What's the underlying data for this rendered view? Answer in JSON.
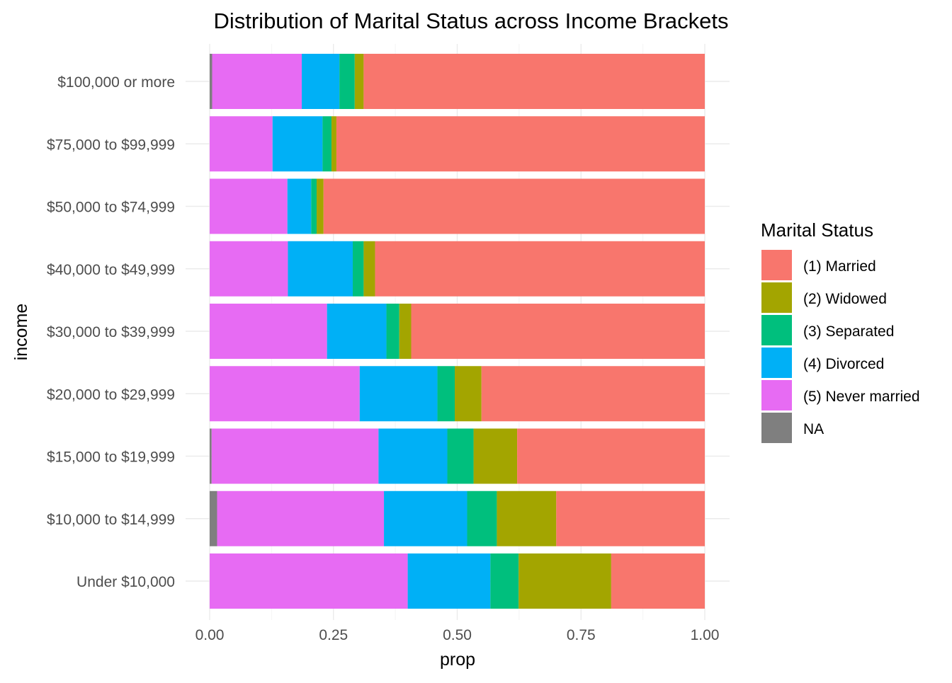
{
  "chart_data": {
    "type": "bar",
    "orientation": "horizontal",
    "stacked": true,
    "title": "Distribution of Marital Status across Income Brackets",
    "xlabel": "prop",
    "ylabel": "income",
    "xlim": [
      0,
      1
    ],
    "x_ticks": [
      "0.00",
      "0.25",
      "0.50",
      "0.75",
      "1.00"
    ],
    "x_tick_values": [
      0,
      0.25,
      0.5,
      0.75,
      1.0
    ],
    "grid": true,
    "legend": {
      "title": "Marital Status",
      "placement": "right",
      "entries": [
        "(1) Married",
        "(2) Widowed",
        "(3) Separated",
        "(4) Divorced",
        "(5) Never married",
        "NA"
      ]
    },
    "categories": [
      "$100,000 or more",
      "$75,000 to $99,999",
      "$50,000 to $74,999",
      "$40,000 to $49,999",
      "$30,000 to $39,999",
      "$20,000 to $29,999",
      "$15,000 to $19,999",
      "$10,000 to $14,999",
      "Under $10,000"
    ],
    "stack_order_from_left": [
      "NA",
      "(5) Never married",
      "(4) Divorced",
      "(3) Separated",
      "(2) Widowed",
      "(1) Married"
    ],
    "series": [
      {
        "name": "NA",
        "color": "#7F7F7F",
        "values": [
          0.005,
          0.0,
          0.0,
          0.0,
          0.0,
          0.0,
          0.004,
          0.015,
          0.0
        ]
      },
      {
        "name": "(5) Never married",
        "color": "#E76BF3",
        "values": [
          0.181,
          0.127,
          0.157,
          0.158,
          0.237,
          0.303,
          0.337,
          0.337,
          0.4
        ]
      },
      {
        "name": "(4) Divorced",
        "color": "#00B0F6",
        "values": [
          0.076,
          0.101,
          0.048,
          0.131,
          0.12,
          0.157,
          0.139,
          0.168,
          0.167
        ]
      },
      {
        "name": "(3) Separated",
        "color": "#00BF7D",
        "values": [
          0.031,
          0.018,
          0.011,
          0.022,
          0.026,
          0.035,
          0.053,
          0.06,
          0.057
        ]
      },
      {
        "name": "(2) Widowed",
        "color": "#A3A500",
        "values": [
          0.018,
          0.01,
          0.014,
          0.023,
          0.024,
          0.054,
          0.088,
          0.12,
          0.187
        ]
      },
      {
        "name": "(1) Married",
        "color": "#F8766D",
        "values": [
          0.689,
          0.744,
          0.77,
          0.666,
          0.593,
          0.451,
          0.379,
          0.3,
          0.189
        ]
      }
    ]
  }
}
